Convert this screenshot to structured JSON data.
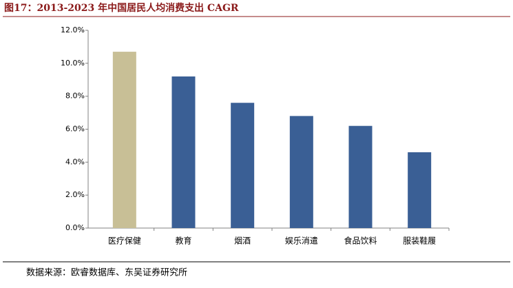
{
  "chart_data": {
    "type": "bar",
    "title": "图17：2013-2023 年中国居民人均消费支出 CAGR",
    "source": "数据来源：欧睿数据库、东吴证券研究所",
    "categories": [
      "医疗保健",
      "教育",
      "烟酒",
      "娱乐消遣",
      "食品饮料",
      "服装鞋履"
    ],
    "values": [
      10.7,
      9.2,
      7.6,
      6.8,
      6.2,
      4.6
    ],
    "colors": [
      "#c8bf96",
      "#3a5f95",
      "#3a5f95",
      "#3a5f95",
      "#3a5f95",
      "#3a5f95"
    ],
    "ylim": [
      0,
      12
    ],
    "yticks": [
      {
        "value": 0,
        "label": "0.0%"
      },
      {
        "value": 2,
        "label": "2.0%"
      },
      {
        "value": 4,
        "label": "4.0%"
      },
      {
        "value": 6,
        "label": "6.0%"
      },
      {
        "value": 8,
        "label": "8.0%"
      },
      {
        "value": 10,
        "label": "10.0%"
      },
      {
        "value": 12,
        "label": "12.0%"
      }
    ],
    "grid": false
  }
}
